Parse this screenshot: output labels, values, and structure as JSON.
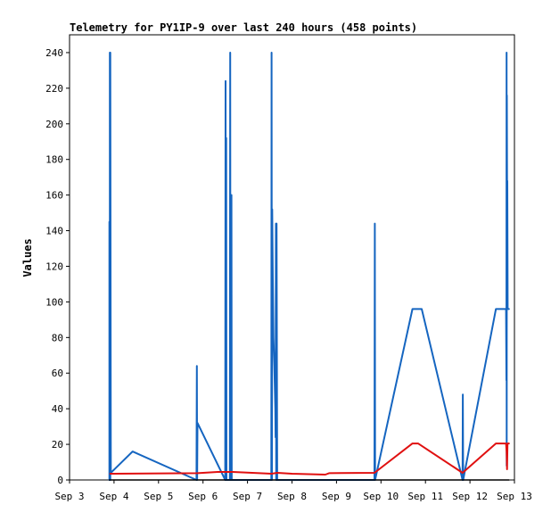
{
  "chart_data": {
    "type": "line",
    "title": "Telemetry for PY1IP-9 over last 240 hours (458 points)",
    "xlabel": "",
    "ylabel": "Values",
    "ylim": [
      0,
      250
    ],
    "xlim": [
      "2024-09-03 00:00",
      "2024-09-13 00:00"
    ],
    "x_tick_labels": [
      "Sep 3",
      "Sep 4",
      "Sep 5",
      "Sep 6",
      "Sep 7",
      "Sep 8",
      "Sep 9",
      "Sep 10",
      "Sep 11",
      "Sep 12",
      "Sep 13"
    ],
    "y_ticks": [
      0,
      20,
      40,
      60,
      80,
      100,
      120,
      140,
      160,
      180,
      200,
      220,
      240
    ],
    "grid": false,
    "legend": "none",
    "series": [
      {
        "color": "#1565c0",
        "points": [
          [
            "2024-09-03 21:30",
            0
          ],
          [
            "2024-09-03 21:30",
            145
          ],
          [
            "2024-09-03 21:45",
            0
          ],
          [
            "2024-09-03 21:45",
            240
          ],
          [
            "2024-09-03 22:00",
            0
          ],
          [
            "2024-09-03 22:00",
            240
          ],
          [
            "2024-09-03 22:15",
            4
          ],
          [
            "2024-09-04 10:00",
            16
          ],
          [
            "2024-09-05 20:30",
            0
          ],
          [
            "2024-09-05 20:40",
            64
          ],
          [
            "2024-09-05 20:50",
            0
          ],
          [
            "2024-09-05 21:00",
            32
          ],
          [
            "2024-09-06 12:00",
            0
          ],
          [
            "2024-09-06 12:10",
            224
          ],
          [
            "2024-09-06 12:20",
            0
          ],
          [
            "2024-09-06 12:30",
            192
          ],
          [
            "2024-09-06 12:40",
            0
          ],
          [
            "2024-09-06 14:30",
            0
          ],
          [
            "2024-09-06 14:40",
            240
          ],
          [
            "2024-09-06 14:50",
            0
          ],
          [
            "2024-09-06 15:00",
            104
          ],
          [
            "2024-09-06 15:10",
            24
          ],
          [
            "2024-09-06 15:20",
            160
          ],
          [
            "2024-09-06 15:30",
            0
          ],
          [
            "2024-09-07 12:50",
            0
          ],
          [
            "2024-09-07 13:00",
            240
          ],
          [
            "2024-09-07 13:10",
            0
          ],
          [
            "2024-09-07 13:20",
            152
          ],
          [
            "2024-09-07 13:40",
            112
          ],
          [
            "2024-09-07 14:00",
            80
          ],
          [
            "2024-09-07 14:30",
            64
          ],
          [
            "2024-09-07 15:00",
            40
          ],
          [
            "2024-09-07 15:10",
            24
          ],
          [
            "2024-09-07 15:20",
            144
          ],
          [
            "2024-09-07 15:30",
            0
          ],
          [
            "2024-09-07 15:40",
            144
          ],
          [
            "2024-09-07 16:00",
            0
          ],
          [
            "2024-09-09 20:30",
            0
          ],
          [
            "2024-09-09 20:40",
            144
          ],
          [
            "2024-09-09 20:50",
            0
          ],
          [
            "2024-09-10 17:00",
            96
          ],
          [
            "2024-09-10 22:00",
            96
          ],
          [
            "2024-09-11 20:00",
            0
          ],
          [
            "2024-09-11 20:10",
            48
          ],
          [
            "2024-09-11 20:20",
            0
          ],
          [
            "2024-09-12 14:00",
            96
          ],
          [
            "2024-09-12 19:30",
            96
          ],
          [
            "2024-09-12 19:40",
            56
          ],
          [
            "2024-09-12 19:45",
            240
          ],
          [
            "2024-09-12 19:50",
            8
          ],
          [
            "2024-09-12 19:55",
            216
          ],
          [
            "2024-09-12 20:05",
            120
          ],
          [
            "2024-09-12 20:10",
            168
          ],
          [
            "2024-09-12 20:20",
            96
          ],
          [
            "2024-09-12 21:00",
            96
          ]
        ]
      },
      {
        "color": "#e01010",
        "points": [
          [
            "2024-09-03 22:00",
            3.5
          ],
          [
            "2024-09-05 21:00",
            3.8
          ],
          [
            "2024-09-06 08:00",
            4.5
          ],
          [
            "2024-09-06 16:00",
            4.5
          ],
          [
            "2024-09-07 13:00",
            3.5
          ],
          [
            "2024-09-07 16:00",
            4
          ],
          [
            "2024-09-08 00:00",
            3.5
          ],
          [
            "2024-09-08 18:00",
            3
          ],
          [
            "2024-09-08 20:00",
            3.8
          ],
          [
            "2024-09-09 20:30",
            4
          ],
          [
            "2024-09-10 17:00",
            20.5
          ],
          [
            "2024-09-10 20:00",
            20.5
          ],
          [
            "2024-09-11 20:00",
            4
          ],
          [
            "2024-09-12 14:00",
            20.5
          ],
          [
            "2024-09-12 19:30",
            20.5
          ],
          [
            "2024-09-12 19:45",
            16
          ],
          [
            "2024-09-12 20:00",
            6
          ],
          [
            "2024-09-12 20:15",
            20.5
          ],
          [
            "2024-09-12 21:00",
            20.5
          ]
        ]
      },
      {
        "color": "#000000",
        "points": [
          [
            "2024-09-03 21:30",
            0
          ],
          [
            "2024-09-12 21:00",
            0
          ]
        ]
      }
    ]
  }
}
